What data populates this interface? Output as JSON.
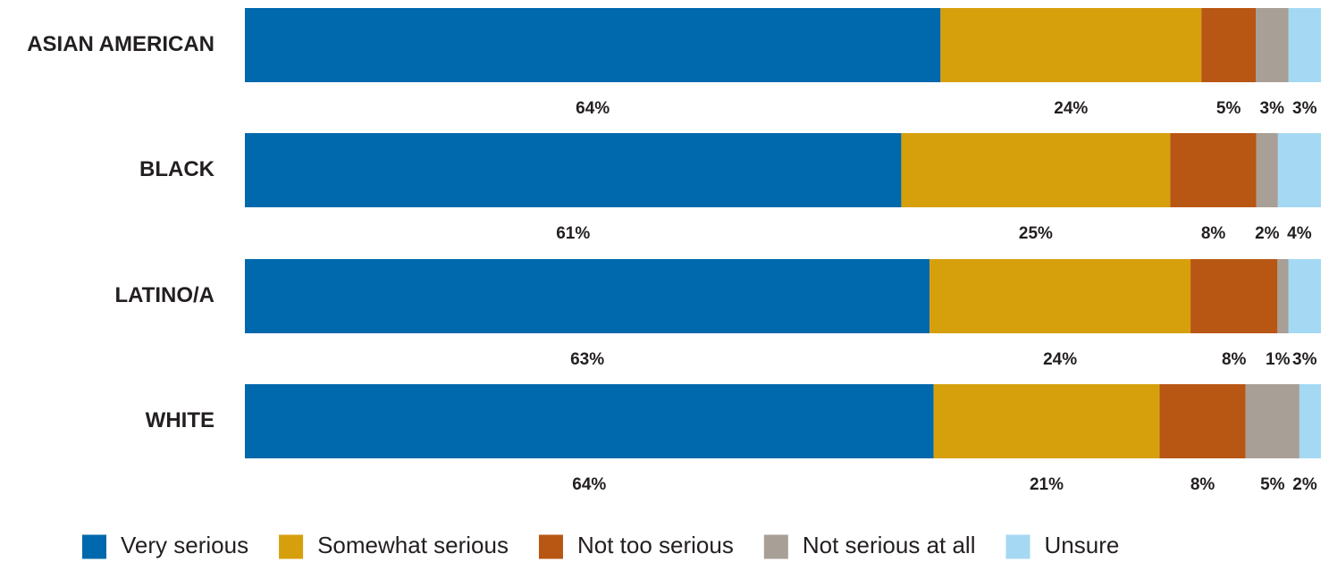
{
  "chart_data": {
    "type": "bar",
    "orientation": "horizontal",
    "stacked": true,
    "percent_stacked": true,
    "categories": [
      "ASIAN AMERICAN",
      "BLACK",
      "LATINO/A",
      "WHITE"
    ],
    "series": [
      {
        "name": "Very serious",
        "color": "#0068ac",
        "values": [
          64,
          61,
          63,
          64
        ],
        "labels": [
          "64%",
          "61%",
          "63%",
          "64%"
        ]
      },
      {
        "name": "Somewhat serious",
        "color": "#d69f0c",
        "values": [
          24,
          25,
          24,
          21
        ],
        "labels": [
          "24%",
          "25%",
          "24%",
          "21%"
        ]
      },
      {
        "name": "Not too serious",
        "color": "#b85614",
        "values": [
          5,
          8,
          8,
          8
        ],
        "labels": [
          "5%",
          "8%",
          "8%",
          "8%"
        ]
      },
      {
        "name": "Not serious at all",
        "color": "#a89f96",
        "values": [
          3,
          2,
          1,
          5
        ],
        "labels": [
          "3%",
          "2%",
          "1%",
          "5%"
        ]
      },
      {
        "name": "Unsure",
        "color": "#a5d9f3",
        "values": [
          3,
          4,
          3,
          2
        ],
        "labels": [
          "3%",
          "4%",
          "3%",
          "2%"
        ]
      }
    ],
    "legend_position": "bottom",
    "grid": false
  }
}
